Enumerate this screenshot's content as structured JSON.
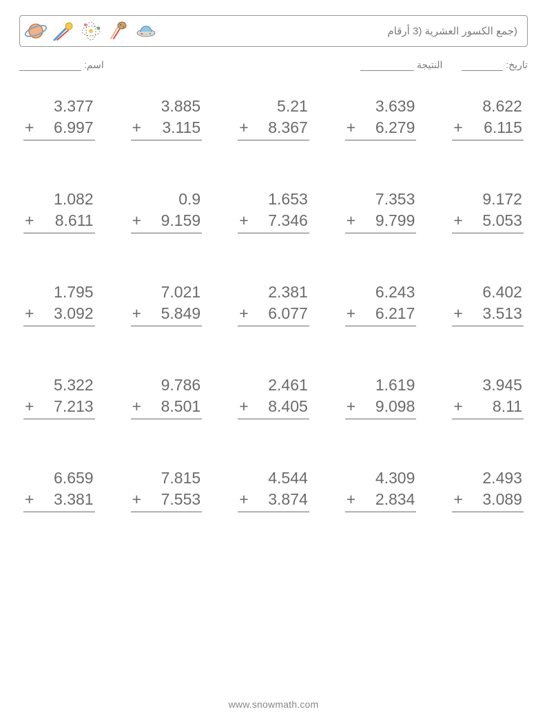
{
  "header": {
    "title": "(جمع الكسور العشرية (3 أرقام",
    "icons": [
      "planet-icon",
      "comet-icon",
      "orbit-icon",
      "asteroid-icon",
      "ufo-icon"
    ]
  },
  "meta": {
    "name_label": "اسم:",
    "score_label": "النتيجة",
    "date_label": "تاريخ:",
    "blank_widths": {
      "name": 90,
      "score": 78,
      "date": 60
    }
  },
  "style": {
    "page_bg": "#ffffff",
    "text_color": "#6b6b6b",
    "border_color": "#999999",
    "underline_color": "#6b6b6b",
    "problem_fontsize": 23,
    "title_fontsize": 15,
    "meta_fontsize": 14,
    "grid": {
      "cols": 5,
      "rows": 5,
      "col_gap": 52,
      "row_gap": 70
    }
  },
  "problems": [
    {
      "a": "3.377",
      "b": "6.997"
    },
    {
      "a": "3.885",
      "b": "3.115"
    },
    {
      "a": "5.21",
      "b": "8.367"
    },
    {
      "a": "3.639",
      "b": "6.279"
    },
    {
      "a": "8.622",
      "b": "6.115"
    },
    {
      "a": "1.082",
      "b": "8.611"
    },
    {
      "a": "0.9",
      "b": "9.159"
    },
    {
      "a": "1.653",
      "b": "7.346"
    },
    {
      "a": "7.353",
      "b": "9.799"
    },
    {
      "a": "9.172",
      "b": "5.053"
    },
    {
      "a": "1.795",
      "b": "3.092"
    },
    {
      "a": "7.021",
      "b": "5.849"
    },
    {
      "a": "2.381",
      "b": "6.077"
    },
    {
      "a": "6.243",
      "b": "6.217"
    },
    {
      "a": "6.402",
      "b": "3.513"
    },
    {
      "a": "5.322",
      "b": "7.213"
    },
    {
      "a": "9.786",
      "b": "8.501"
    },
    {
      "a": "2.461",
      "b": "8.405"
    },
    {
      "a": "1.619",
      "b": "9.098"
    },
    {
      "a": "3.945",
      "b": "8.11"
    },
    {
      "a": "6.659",
      "b": "3.381"
    },
    {
      "a": "7.815",
      "b": "7.553"
    },
    {
      "a": "4.544",
      "b": "3.874"
    },
    {
      "a": "4.309",
      "b": "2.834"
    },
    {
      "a": "2.493",
      "b": "3.089"
    }
  ],
  "operator": "+",
  "footer": "www.snowmath.com"
}
